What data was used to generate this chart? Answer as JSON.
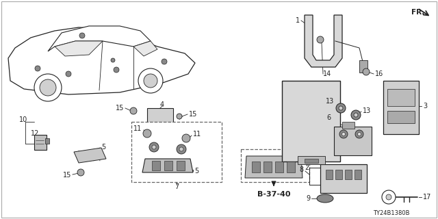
{
  "background_color": "#ffffff",
  "line_color": "#222222",
  "fig_width": 6.4,
  "fig_height": 3.2,
  "dpi": 100,
  "doc_num": "TY24B1380B",
  "fr_text": "FR.",
  "ref_text": "B-37-40",
  "border_color": "#aaaaaa"
}
